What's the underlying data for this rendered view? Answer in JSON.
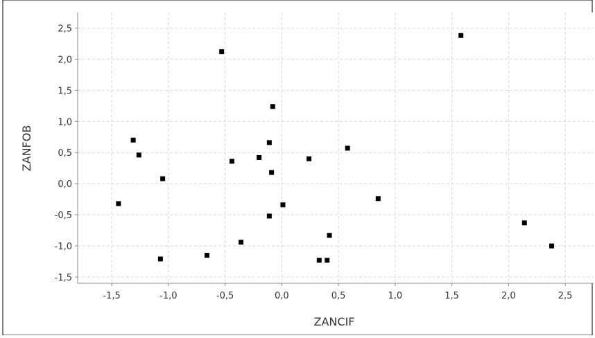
{
  "chart_data": {
    "type": "scatter",
    "title": "",
    "xlabel": "ZANCIF",
    "ylabel": "ZANFOB",
    "xlim": [
      -1.8,
      2.75
    ],
    "ylim": [
      -1.6,
      2.75
    ],
    "x_ticks": [
      -1.5,
      -1.0,
      -0.5,
      0.0,
      0.5,
      1.0,
      1.5,
      2.0,
      2.5
    ],
    "y_ticks": [
      -1.5,
      -1.0,
      -0.5,
      0.0,
      0.5,
      1.0,
      1.5,
      2.0,
      2.5
    ],
    "x_tick_labels": [
      "-1,5",
      "-1,0",
      "-0,5",
      "0,0",
      "0,5",
      "1,0",
      "1,5",
      "2,0",
      "2,5"
    ],
    "y_tick_labels": [
      "-1,5",
      "-1,0",
      "-0,5",
      "0,0",
      "0,5",
      "1,0",
      "1,5",
      "2,0",
      "2,5"
    ],
    "grid": true,
    "legend": "none",
    "marker_color": "#000000",
    "grid_color": "#d9d9d9",
    "points": [
      {
        "x": -0.53,
        "y": 2.12
      },
      {
        "x": 1.58,
        "y": 2.38
      },
      {
        "x": -0.08,
        "y": 1.24
      },
      {
        "x": -1.31,
        "y": 0.7
      },
      {
        "x": -0.11,
        "y": 0.66
      },
      {
        "x": 0.58,
        "y": 0.57
      },
      {
        "x": -1.26,
        "y": 0.46
      },
      {
        "x": -0.2,
        "y": 0.42
      },
      {
        "x": 0.24,
        "y": 0.4
      },
      {
        "x": -0.44,
        "y": 0.36
      },
      {
        "x": -0.09,
        "y": 0.18
      },
      {
        "x": -1.05,
        "y": 0.08
      },
      {
        "x": -1.44,
        "y": -0.32
      },
      {
        "x": 0.01,
        "y": -0.34
      },
      {
        "x": 0.85,
        "y": -0.24
      },
      {
        "x": -0.11,
        "y": -0.52
      },
      {
        "x": 2.14,
        "y": -0.63
      },
      {
        "x": 0.42,
        "y": -0.83
      },
      {
        "x": -0.36,
        "y": -0.94
      },
      {
        "x": 2.38,
        "y": -1.0
      },
      {
        "x": -0.66,
        "y": -1.15
      },
      {
        "x": -1.07,
        "y": -1.21
      },
      {
        "x": 0.33,
        "y": -1.23
      },
      {
        "x": 0.4,
        "y": -1.23
      }
    ]
  }
}
